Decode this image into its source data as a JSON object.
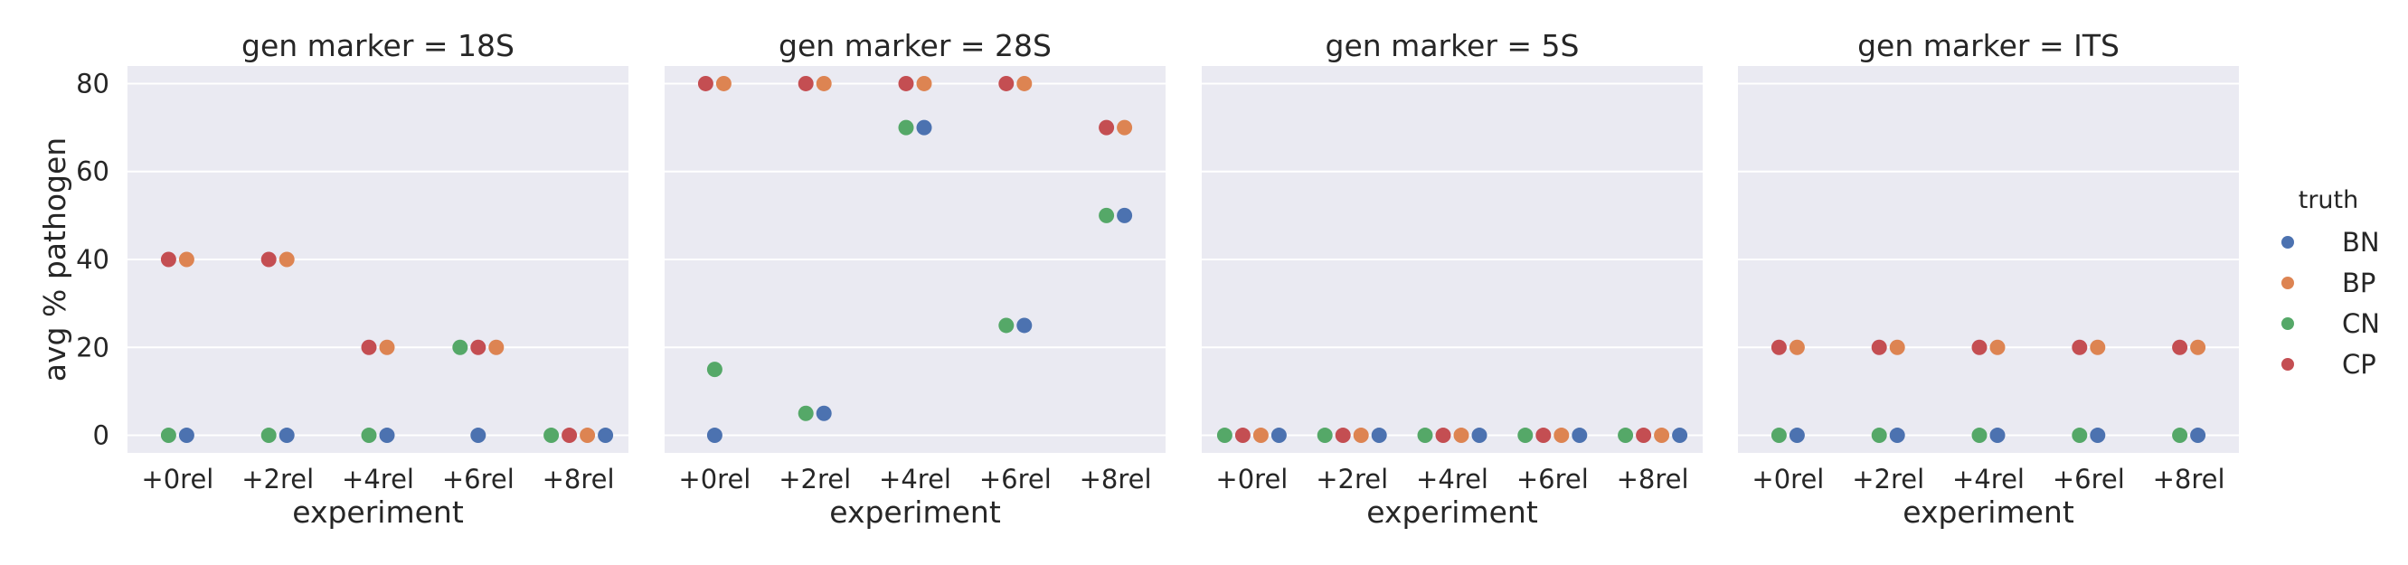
{
  "chart_data": {
    "type": "scatter",
    "xlabel": "experiment",
    "ylabel": "avg % pathogen",
    "categories": [
      "+0rel",
      "+2rel",
      "+4rel",
      "+6rel",
      "+8rel"
    ],
    "yticks": [
      0,
      20,
      40,
      60,
      80
    ],
    "ylim": [
      -4,
      84
    ],
    "grid": true,
    "legend": {
      "title": "truth",
      "placement": "right",
      "entries": [
        {
          "name": "BN",
          "color": "#4c72b0"
        },
        {
          "name": "BP",
          "color": "#dd8452"
        },
        {
          "name": "CN",
          "color": "#55a868"
        },
        {
          "name": "CP",
          "color": "#c44e52"
        }
      ]
    },
    "panels": [
      {
        "title": "gen marker = 18S",
        "series": [
          {
            "name": "BN",
            "values": [
              0,
              0,
              0,
              0,
              0
            ]
          },
          {
            "name": "BP",
            "values": [
              40,
              40,
              20,
              20,
              0
            ]
          },
          {
            "name": "CN",
            "values": [
              0,
              0,
              0,
              20,
              0
            ]
          },
          {
            "name": "CP",
            "values": [
              40,
              40,
              20,
              20,
              0
            ]
          }
        ]
      },
      {
        "title": "gen marker = 28S",
        "series": [
          {
            "name": "BN",
            "values": [
              0,
              5,
              70,
              25,
              50
            ]
          },
          {
            "name": "BP",
            "values": [
              80,
              80,
              80,
              80,
              70
            ]
          },
          {
            "name": "CN",
            "values": [
              15,
              5,
              70,
              25,
              50
            ]
          },
          {
            "name": "CP",
            "values": [
              80,
              80,
              80,
              80,
              70
            ]
          }
        ]
      },
      {
        "title": "gen marker = 5S",
        "series": [
          {
            "name": "BN",
            "values": [
              0,
              0,
              0,
              0,
              0
            ]
          },
          {
            "name": "BP",
            "values": [
              0,
              0,
              0,
              0,
              0
            ]
          },
          {
            "name": "CN",
            "values": [
              0,
              0,
              0,
              0,
              0
            ]
          },
          {
            "name": "CP",
            "values": [
              0,
              0,
              0,
              0,
              0
            ]
          }
        ]
      },
      {
        "title": "gen marker = ITS",
        "series": [
          {
            "name": "BN",
            "values": [
              0,
              0,
              0,
              0,
              0
            ]
          },
          {
            "name": "BP",
            "values": [
              20,
              20,
              20,
              20,
              20
            ]
          },
          {
            "name": "CN",
            "values": [
              0,
              0,
              0,
              0,
              0
            ]
          },
          {
            "name": "CP",
            "values": [
              20,
              20,
              20,
              20,
              20
            ]
          }
        ]
      }
    ]
  },
  "colors": {
    "panel_bg": "#eaeaf2",
    "grid": "#ffffff",
    "text": "#262626"
  }
}
